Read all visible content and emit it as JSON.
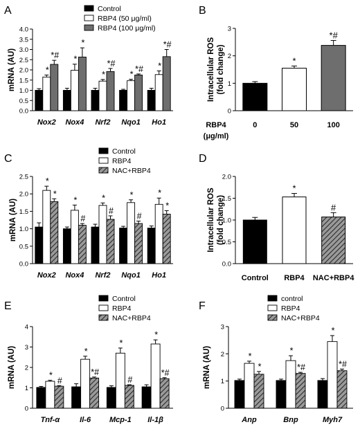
{
  "chart_data": [
    {
      "panel": "A",
      "type": "bar",
      "ylabel": "mRNA (AU)",
      "ylim": [
        0,
        4.0
      ],
      "yticks": [
        "0.0",
        "0.5",
        "1.0",
        "1.5",
        "2.0",
        "2.5",
        "3.0",
        "3.5",
        "4.0"
      ],
      "categories": [
        "Nox2",
        "Nox4",
        "Nrf2",
        "Nqo1",
        "Ho1"
      ],
      "legend": [
        "Control",
        "RBP4 (50 μg/ml)",
        "RBP4 (100 μg/ml)"
      ],
      "series": [
        {
          "name": "Control",
          "fill": "black",
          "values": [
            1.0,
            1.0,
            1.0,
            1.0,
            1.0
          ],
          "errors": [
            0.08,
            0.1,
            0.1,
            0.05,
            0.1
          ],
          "marks": [
            "",
            "",
            "",
            "",
            ""
          ]
        },
        {
          "name": "RBP4 (50 μg/ml)",
          "fill": "white",
          "values": [
            1.65,
            1.98,
            1.45,
            1.47,
            1.77
          ],
          "errors": [
            0.1,
            0.3,
            0.08,
            0.07,
            0.18
          ],
          "marks": [
            "*",
            "*",
            "*",
            "*",
            "*"
          ]
        },
        {
          "name": "RBP4 (100 μg/ml)",
          "fill": "gray",
          "values": [
            2.27,
            2.63,
            1.92,
            1.75,
            2.65
          ],
          "errors": [
            0.2,
            0.45,
            0.15,
            0.05,
            0.35
          ],
          "marks": [
            "*#",
            "*",
            "*#",
            "*#",
            "*#"
          ]
        }
      ]
    },
    {
      "panel": "B",
      "type": "bar",
      "ylabel": "Intracellular ROS (fold change)",
      "ylim": [
        0,
        3
      ],
      "yticks": [
        "0",
        "1",
        "2",
        "3"
      ],
      "categories": [
        "0",
        "50",
        "100"
      ],
      "xprefix": "RBP4",
      "xunit": "(μg/ml)",
      "series": [
        {
          "name": "",
          "fills": [
            "black",
            "white",
            "gray"
          ],
          "values": [
            1.0,
            1.55,
            2.38
          ],
          "errors": [
            0.06,
            0.08,
            0.18
          ],
          "marks": [
            "",
            "*",
            "*#"
          ]
        }
      ]
    },
    {
      "panel": "C",
      "type": "bar",
      "ylabel": "mRNA (AU)",
      "ylim": [
        0,
        2.5
      ],
      "yticks": [
        "0.0",
        "0.5",
        "1.0",
        "1.5",
        "2.0",
        "2.5"
      ],
      "categories": [
        "Nox2",
        "Nox4",
        "Nrf2",
        "Nqo1",
        "Ho1"
      ],
      "legend": [
        "Control",
        "RBP4",
        "NAC+RBP4"
      ],
      "series": [
        {
          "name": "Control",
          "fill": "black",
          "values": [
            1.05,
            1.0,
            1.05,
            1.02,
            1.02
          ],
          "errors": [
            0.12,
            0.05,
            0.08,
            0.05,
            0.06
          ],
          "marks": [
            "",
            "",
            "",
            "",
            ""
          ]
        },
        {
          "name": "RBP4",
          "fill": "white",
          "values": [
            2.1,
            1.53,
            1.67,
            1.75,
            1.7
          ],
          "errors": [
            0.12,
            0.15,
            0.07,
            0.08,
            0.18
          ],
          "marks": [
            "*",
            "*",
            "*",
            "*",
            "*"
          ]
        },
        {
          "name": "NAC+RBP4",
          "fill": "hatch",
          "values": [
            1.78,
            1.1,
            1.27,
            1.15,
            1.42
          ],
          "errors": [
            0.08,
            0.05,
            0.1,
            0.07,
            0.1
          ],
          "marks": [
            "*",
            "#",
            "#",
            "#",
            "*"
          ]
        }
      ]
    },
    {
      "panel": "D",
      "type": "bar",
      "ylabel": "Intracellular ROS (fold change)",
      "ylim": [
        0,
        2.0
      ],
      "yticks": [
        "0.0",
        "0.5",
        "1.0",
        "1.5",
        "2.0"
      ],
      "categories": [
        "Control",
        "RBP4",
        "NAC+RBP4"
      ],
      "series": [
        {
          "name": "",
          "fills": [
            "black",
            "white",
            "hatch"
          ],
          "values": [
            1.0,
            1.53,
            1.07
          ],
          "errors": [
            0.06,
            0.08,
            0.1
          ],
          "marks": [
            "",
            "*",
            "#"
          ]
        }
      ]
    },
    {
      "panel": "E",
      "type": "bar",
      "ylabel": "mRNA (AU)",
      "ylim": [
        0,
        4
      ],
      "yticks": [
        "0",
        "1",
        "2",
        "3",
        "4"
      ],
      "categories": [
        "Tnf-α",
        "Il-6",
        "Mcp-1",
        "Il-1β"
      ],
      "legend": [
        "Control",
        "RBP4",
        "NAC+RBP4"
      ],
      "series": [
        {
          "name": "Control",
          "fill": "black",
          "values": [
            1.02,
            1.05,
            1.02,
            1.05
          ],
          "errors": [
            0.05,
            0.15,
            0.08,
            0.1
          ],
          "marks": [
            "",
            "",
            "",
            ""
          ]
        },
        {
          "name": "RBP4",
          "fill": "white",
          "values": [
            1.32,
            2.4,
            2.7,
            3.15
          ],
          "errors": [
            0.05,
            0.15,
            0.25,
            0.2
          ],
          "marks": [
            "*",
            "*",
            "*",
            "*"
          ]
        },
        {
          "name": "NAC+RBP4",
          "fill": "hatch",
          "values": [
            1.08,
            1.48,
            1.12,
            1.45
          ],
          "errors": [
            0.03,
            0.05,
            0.03,
            0.05
          ],
          "marks": [
            "#",
            "*#",
            "#",
            "*#"
          ]
        }
      ]
    },
    {
      "panel": "F",
      "type": "bar",
      "ylabel": "mRNA (AU)",
      "ylim": [
        0,
        3
      ],
      "yticks": [
        "0",
        "1",
        "2",
        "3"
      ],
      "categories": [
        "Anp",
        "Bnp",
        "Myh7"
      ],
      "legend": [
        "control",
        "RBP4",
        "NAC+RBP4"
      ],
      "series": [
        {
          "name": "control",
          "fill": "black",
          "values": [
            1.02,
            1.02,
            1.02
          ],
          "errors": [
            0.05,
            0.05,
            0.07
          ],
          "marks": [
            "",
            "",
            ""
          ]
        },
        {
          "name": "RBP4",
          "fill": "white",
          "values": [
            1.65,
            1.75,
            2.45
          ],
          "errors": [
            0.08,
            0.18,
            0.22
          ],
          "marks": [
            "*",
            "*",
            "*"
          ]
        },
        {
          "name": "NAC+RBP4",
          "fill": "hatch",
          "values": [
            1.25,
            1.28,
            1.38
          ],
          "errors": [
            0.1,
            0.04,
            0.06
          ],
          "marks": [
            "*",
            "*#",
            "*#"
          ]
        }
      ]
    }
  ],
  "colors": {
    "black": "#000000",
    "white": "#ffffff",
    "gray": "#6e6e6e",
    "hatch_bg": "#9a9a9a",
    "hatch_line": "#2a2a2a"
  }
}
